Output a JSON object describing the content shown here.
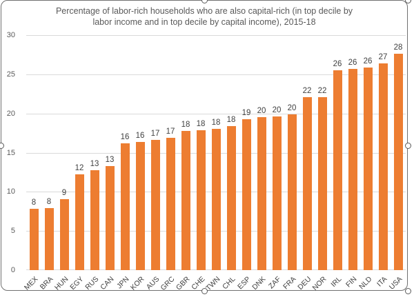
{
  "chart_data": {
    "type": "bar",
    "title": "Percentage of labor-rich households who are also capital-rich (in top decile by labor income and in top decile by capital income), 2015-18",
    "title_lines": [
      "Percentage of labor-rich households who are also capital-rich (in top decile by",
      "labor income and in top decile by capital income), 2015-18"
    ],
    "categories": [
      "MEX",
      "BRA",
      "HUN",
      "EGY",
      "RUS",
      "CAN",
      "JPN",
      "KOR",
      "AUS",
      "GRC",
      "GBR",
      "CHE",
      "TWN",
      "CHL",
      "ESP",
      "DNK",
      "ZAF",
      "FRA",
      "DEU",
      "NOR",
      "IRL",
      "FIN",
      "NLD",
      "ITA",
      "USA"
    ],
    "values": [
      8,
      8,
      9,
      12,
      13,
      13,
      16,
      16,
      17,
      17,
      18,
      18,
      18,
      18,
      19,
      20,
      20,
      20,
      22,
      22,
      26,
      26,
      26,
      27,
      28
    ],
    "bar_heights": [
      7.8,
      7.9,
      9.1,
      12.2,
      12.8,
      13.3,
      16.2,
      16.4,
      16.6,
      16.9,
      17.8,
      17.9,
      18.0,
      18.4,
      19.3,
      19.5,
      19.6,
      19.9,
      22.1,
      22.1,
      25.5,
      25.7,
      25.9,
      26.4,
      27.6
    ],
    "y_ticks": [
      0,
      5,
      10,
      15,
      20,
      25,
      30
    ],
    "ylim": [
      0,
      30
    ],
    "xlabel": "",
    "ylabel": "",
    "legend": "none",
    "grid": true,
    "data_labels": true,
    "colors": {
      "bar": "#ED7D31",
      "gridline": "#D9D9D9",
      "data_label": "#404040",
      "tick_label": "#595959",
      "title": "#595959",
      "frame_border": "#6F6F6F"
    }
  },
  "selection_handles": [
    "top-middle",
    "top-right",
    "right-middle",
    "bottom-right",
    "bottom-middle",
    "left-middle"
  ]
}
